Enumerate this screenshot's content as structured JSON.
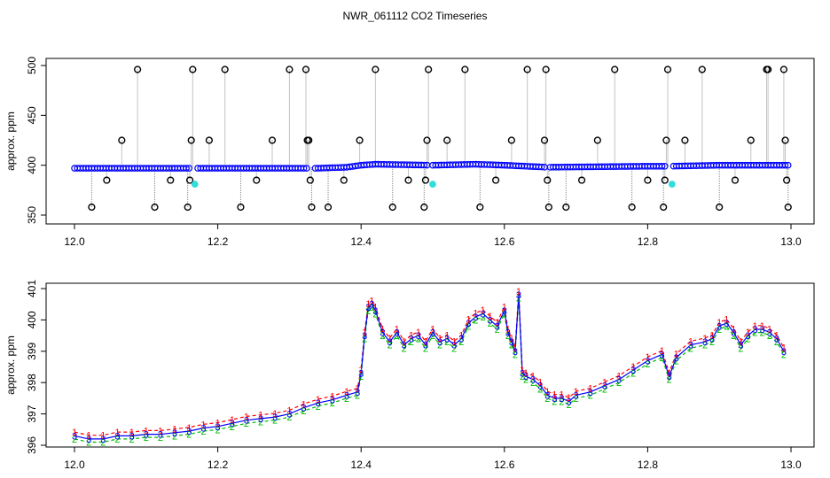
{
  "title": "NWR_061112  CO2 Timeseries",
  "colors": {
    "frame": "#000000",
    "spike": "#888888",
    "series_main": "#0000ff",
    "flag_cyan": "#33dddd",
    "s1": "#ff0000",
    "s2": "#00bb00",
    "s3": "#0000ff"
  },
  "chart_data": [
    {
      "type": "scatter",
      "title": "NWR_061112  CO2 Timeseries",
      "xlabel": "",
      "ylabel": "approx. ppm",
      "xlim": [
        12.0,
        13.0
      ],
      "ylim": [
        345,
        500
      ],
      "xticks": [
        "12.0",
        "12.2",
        "12.4",
        "12.6",
        "12.8",
        "13.0"
      ],
      "yticks": [
        "350",
        "400",
        "450",
        "500"
      ],
      "baseline": [
        [
          12.0,
          397
        ],
        [
          12.34,
          397
        ],
        [
          12.38,
          398
        ],
        [
          12.4,
          400
        ],
        [
          12.42,
          401
        ],
        [
          12.5,
          400
        ],
        [
          12.56,
          401
        ],
        [
          12.6,
          400
        ],
        [
          12.66,
          398
        ],
        [
          12.8,
          399
        ],
        [
          12.83,
          399
        ],
        [
          12.9,
          400
        ],
        [
          13.0,
          400
        ]
      ],
      "gaps": [
        12.165,
        12.33,
        12.495,
        12.66,
        12.83
      ],
      "outliers": [
        {
          "x": 12.024,
          "y": 358
        },
        {
          "x": 12.045,
          "y": 385
        },
        {
          "x": 12.066,
          "y": 425
        },
        {
          "x": 12.088,
          "y": 496
        },
        {
          "x": 12.112,
          "y": 358
        },
        {
          "x": 12.134,
          "y": 385
        },
        {
          "x": 12.158,
          "y": 358
        },
        {
          "x": 12.161,
          "y": 385
        },
        {
          "x": 12.163,
          "y": 425
        },
        {
          "x": 12.165,
          "y": 496
        },
        {
          "x": 12.188,
          "y": 425
        },
        {
          "x": 12.21,
          "y": 496
        },
        {
          "x": 12.232,
          "y": 358
        },
        {
          "x": 12.254,
          "y": 385
        },
        {
          "x": 12.276,
          "y": 425
        },
        {
          "x": 12.3,
          "y": 496
        },
        {
          "x": 12.323,
          "y": 496
        },
        {
          "x": 12.325,
          "y": 425
        },
        {
          "x": 12.327,
          "y": 425
        },
        {
          "x": 12.329,
          "y": 385
        },
        {
          "x": 12.331,
          "y": 358
        },
        {
          "x": 12.354,
          "y": 358
        },
        {
          "x": 12.376,
          "y": 385
        },
        {
          "x": 12.398,
          "y": 425
        },
        {
          "x": 12.42,
          "y": 496
        },
        {
          "x": 12.444,
          "y": 358
        },
        {
          "x": 12.466,
          "y": 385
        },
        {
          "x": 12.488,
          "y": 358
        },
        {
          "x": 12.49,
          "y": 385
        },
        {
          "x": 12.492,
          "y": 425
        },
        {
          "x": 12.494,
          "y": 496
        },
        {
          "x": 12.52,
          "y": 425
        },
        {
          "x": 12.545,
          "y": 496
        },
        {
          "x": 12.566,
          "y": 358
        },
        {
          "x": 12.588,
          "y": 385
        },
        {
          "x": 12.61,
          "y": 425
        },
        {
          "x": 12.632,
          "y": 496
        },
        {
          "x": 12.656,
          "y": 425
        },
        {
          "x": 12.658,
          "y": 496
        },
        {
          "x": 12.66,
          "y": 385
        },
        {
          "x": 12.662,
          "y": 358
        },
        {
          "x": 12.686,
          "y": 358
        },
        {
          "x": 12.708,
          "y": 385
        },
        {
          "x": 12.73,
          "y": 425
        },
        {
          "x": 12.754,
          "y": 496
        },
        {
          "x": 12.778,
          "y": 358
        },
        {
          "x": 12.8,
          "y": 385
        },
        {
          "x": 12.822,
          "y": 358
        },
        {
          "x": 12.824,
          "y": 385
        },
        {
          "x": 12.826,
          "y": 425
        },
        {
          "x": 12.828,
          "y": 496
        },
        {
          "x": 12.852,
          "y": 425
        },
        {
          "x": 12.876,
          "y": 496
        },
        {
          "x": 12.9,
          "y": 358
        },
        {
          "x": 12.922,
          "y": 385
        },
        {
          "x": 12.944,
          "y": 425
        },
        {
          "x": 12.966,
          "y": 496
        },
        {
          "x": 12.968,
          "y": 496
        },
        {
          "x": 12.99,
          "y": 496
        },
        {
          "x": 12.992,
          "y": 425
        },
        {
          "x": 12.994,
          "y": 385
        },
        {
          "x": 12.996,
          "y": 358
        }
      ],
      "flagged": [
        {
          "x": 12.168,
          "y": 381
        },
        {
          "x": 12.5,
          "y": 381
        },
        {
          "x": 12.834,
          "y": 381
        }
      ]
    },
    {
      "type": "line",
      "xlabel": "",
      "ylabel": "approx. ppm",
      "xlim": [
        12.0,
        13.0
      ],
      "ylim": [
        395.9,
        401.2
      ],
      "xticks": [
        "12.0",
        "12.2",
        "12.4",
        "12.6",
        "12.8",
        "13.0"
      ],
      "yticks": [
        "396",
        "397",
        "398",
        "399",
        "400",
        "401"
      ],
      "series": [
        {
          "name": "1",
          "color": "#ff0000"
        },
        {
          "name": "2",
          "color": "#00bb00"
        },
        {
          "name": "3",
          "color": "#0000ff"
        }
      ],
      "x": [
        12.0,
        12.02,
        12.04,
        12.06,
        12.08,
        12.1,
        12.12,
        12.14,
        12.16,
        12.18,
        12.2,
        12.22,
        12.24,
        12.26,
        12.28,
        12.3,
        12.32,
        12.34,
        12.36,
        12.38,
        12.395,
        12.4,
        12.405,
        12.41,
        12.415,
        12.42,
        12.43,
        12.44,
        12.45,
        12.46,
        12.47,
        12.48,
        12.49,
        12.5,
        12.51,
        12.52,
        12.53,
        12.54,
        12.55,
        12.56,
        12.57,
        12.58,
        12.59,
        12.6,
        12.605,
        12.61,
        12.615,
        12.62,
        12.625,
        12.63,
        12.64,
        12.65,
        12.66,
        12.67,
        12.68,
        12.69,
        12.7,
        12.72,
        12.74,
        12.76,
        12.78,
        12.8,
        12.82,
        12.83,
        12.84,
        12.86,
        12.88,
        12.89,
        12.9,
        12.91,
        12.92,
        12.93,
        12.94,
        12.95,
        12.96,
        12.97,
        12.98,
        12.99
      ],
      "values": [
        396.3,
        396.2,
        396.2,
        396.3,
        396.3,
        396.35,
        396.35,
        396.4,
        396.45,
        396.55,
        396.6,
        396.7,
        396.8,
        396.85,
        396.9,
        397.0,
        397.2,
        397.35,
        397.45,
        397.6,
        397.7,
        398.3,
        399.5,
        400.4,
        400.5,
        400.3,
        399.6,
        399.3,
        399.6,
        399.2,
        399.4,
        399.5,
        399.2,
        399.6,
        399.3,
        399.4,
        399.2,
        399.4,
        399.9,
        400.1,
        400.2,
        400.0,
        399.8,
        400.3,
        399.6,
        399.3,
        399.0,
        400.8,
        398.3,
        398.2,
        398.1,
        397.9,
        397.6,
        397.5,
        397.5,
        397.4,
        397.6,
        397.7,
        397.9,
        398.1,
        398.4,
        398.7,
        398.9,
        398.2,
        398.8,
        399.2,
        399.3,
        399.4,
        399.8,
        399.9,
        399.6,
        399.2,
        399.5,
        399.7,
        399.7,
        399.6,
        399.4,
        399.0
      ]
    }
  ]
}
